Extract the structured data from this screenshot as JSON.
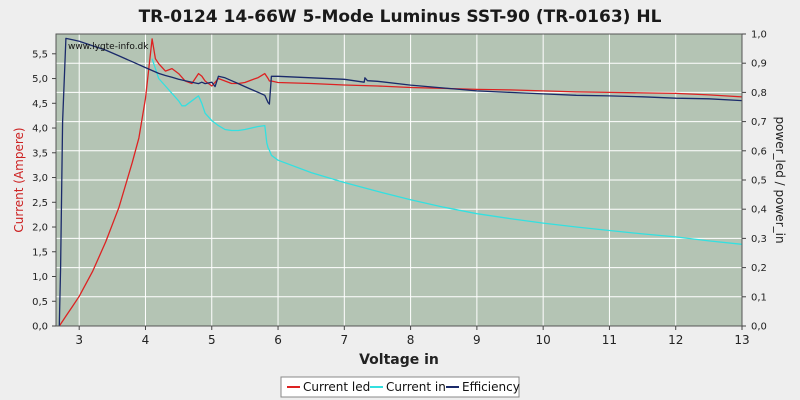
{
  "chart_data": {
    "type": "line",
    "title": "TR-0124 14-66W 5-Mode Luminus SST-90 (TR-0163) HL",
    "watermark": "www.lygte-info.dk",
    "xlabel": "Voltage in",
    "ylabel_left": "Current (Ampere)",
    "ylabel_right": "power_led / power_in",
    "xlim": [
      2.65,
      13.0
    ],
    "ylim_left": [
      0.0,
      5.9
    ],
    "ylim_right": [
      0.0,
      1.0
    ],
    "x_ticks": [
      "3",
      "4",
      "5",
      "6",
      "7",
      "8",
      "9",
      "10",
      "11",
      "12",
      "13"
    ],
    "y_left_ticks": [
      "0,0",
      "0,5",
      "1,0",
      "1,5",
      "2,0",
      "2,5",
      "3,0",
      "3,5",
      "4,0",
      "4,5",
      "5,0",
      "5,5"
    ],
    "y_right_ticks": [
      "0,0",
      "0,1",
      "0,2",
      "0,3",
      "0,4",
      "0,5",
      "0,6",
      "0,7",
      "0,8",
      "0,9",
      "1,0"
    ],
    "grid": true,
    "legend_position": "bottom-center",
    "colors": {
      "plot_bg": "#b4c4b4",
      "page_bg": "#eeeeee",
      "grid": "#ffffff",
      "title": "#1a1a1a"
    },
    "series": [
      {
        "name": "Current led",
        "axis": "left",
        "color": "#dd2222",
        "x": [
          2.7,
          2.75,
          2.8,
          2.9,
          3.0,
          3.2,
          3.4,
          3.6,
          3.8,
          3.9,
          4.0,
          4.05,
          4.1,
          4.15,
          4.2,
          4.3,
          4.4,
          4.5,
          4.6,
          4.7,
          4.8,
          4.85,
          4.9,
          5.0,
          5.1,
          5.2,
          5.3,
          5.4,
          5.5,
          5.6,
          5.7,
          5.8,
          5.85,
          5.87,
          5.9,
          6.0,
          6.5,
          7.0,
          7.5,
          8.0,
          8.5,
          9.0,
          9.5,
          10.0,
          10.5,
          11.0,
          11.5,
          12.0,
          12.5,
          13.0
        ],
        "y": [
          0.0,
          0.1,
          0.2,
          0.4,
          0.6,
          1.1,
          1.7,
          2.4,
          3.3,
          3.8,
          4.6,
          5.2,
          5.8,
          5.4,
          5.3,
          5.15,
          5.2,
          5.1,
          4.95,
          4.9,
          5.1,
          5.05,
          4.95,
          4.85,
          5.0,
          4.95,
          4.9,
          4.9,
          4.92,
          4.97,
          5.02,
          5.1,
          5.0,
          4.95,
          4.95,
          4.92,
          4.9,
          4.87,
          4.85,
          4.82,
          4.8,
          4.78,
          4.77,
          4.75,
          4.73,
          4.72,
          4.71,
          4.7,
          4.67,
          4.63
        ]
      },
      {
        "name": "Current in",
        "axis": "left",
        "color": "#33e0e0",
        "x": [
          4.1,
          4.2,
          4.3,
          4.4,
          4.5,
          4.55,
          4.6,
          4.7,
          4.8,
          4.85,
          4.9,
          5.0,
          5.1,
          5.2,
          5.3,
          5.4,
          5.5,
          5.6,
          5.7,
          5.8,
          5.83,
          5.85,
          5.87,
          5.9,
          6.0,
          6.5,
          7.0,
          7.5,
          8.0,
          8.5,
          9.0,
          9.5,
          10.0,
          10.5,
          11.0,
          11.5,
          12.0,
          12.5,
          13.0
        ],
        "y": [
          5.4,
          5.0,
          4.85,
          4.7,
          4.55,
          4.45,
          4.45,
          4.55,
          4.65,
          4.5,
          4.3,
          4.15,
          4.05,
          3.97,
          3.95,
          3.95,
          3.97,
          4.0,
          4.03,
          4.05,
          3.7,
          3.6,
          3.55,
          3.45,
          3.35,
          3.1,
          2.9,
          2.72,
          2.55,
          2.4,
          2.27,
          2.17,
          2.08,
          2.0,
          1.93,
          1.86,
          1.8,
          1.72,
          1.65
        ]
      },
      {
        "name": "Efficiency",
        "axis": "right",
        "color": "#1a2a6a",
        "x": [
          2.7,
          2.72,
          2.75,
          2.8,
          2.9,
          3.0,
          3.2,
          3.4,
          3.6,
          3.8,
          4.0,
          4.1,
          4.2,
          4.3,
          4.4,
          4.5,
          4.6,
          4.7,
          4.8,
          4.85,
          4.9,
          5.0,
          5.05,
          5.1,
          5.2,
          5.3,
          5.4,
          5.5,
          5.6,
          5.7,
          5.8,
          5.85,
          5.87,
          5.9,
          6.0,
          6.5,
          7.0,
          7.3,
          7.31,
          7.35,
          7.5,
          8.0,
          8.5,
          9.0,
          9.5,
          10.0,
          10.5,
          11.0,
          11.5,
          12.0,
          12.5,
          13.0
        ],
        "y": [
          0.0,
          0.2,
          0.7,
          0.985,
          0.98,
          0.975,
          0.96,
          0.945,
          0.925,
          0.905,
          0.885,
          0.875,
          0.865,
          0.858,
          0.852,
          0.845,
          0.84,
          0.835,
          0.83,
          0.835,
          0.83,
          0.835,
          0.82,
          0.855,
          0.85,
          0.84,
          0.83,
          0.82,
          0.81,
          0.8,
          0.79,
          0.765,
          0.76,
          0.855,
          0.855,
          0.85,
          0.845,
          0.835,
          0.85,
          0.84,
          0.838,
          0.825,
          0.815,
          0.805,
          0.8,
          0.795,
          0.79,
          0.788,
          0.785,
          0.78,
          0.778,
          0.772
        ]
      }
    ]
  }
}
